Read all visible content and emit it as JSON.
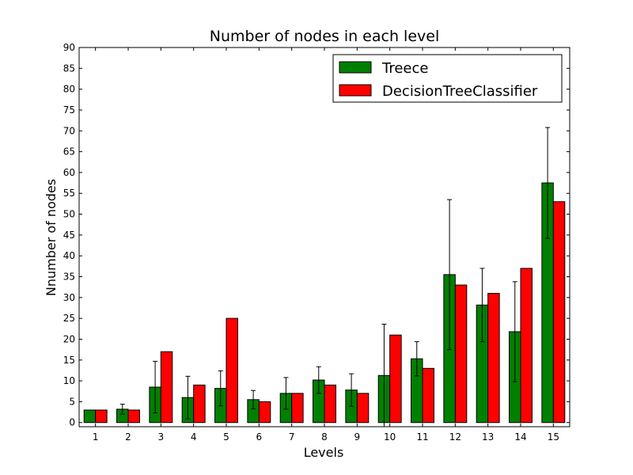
{
  "chart_data": {
    "type": "bar",
    "title": "Number of nodes in each level",
    "xlabel": "Levels",
    "ylabel": "Nnumber of nodes",
    "categories": [
      "1",
      "2",
      "3",
      "4",
      "5",
      "6",
      "7",
      "8",
      "9",
      "10",
      "11",
      "12",
      "13",
      "14",
      "15"
    ],
    "ylim": [
      -1,
      90
    ],
    "yticks": [
      0,
      5,
      10,
      15,
      20,
      25,
      30,
      35,
      40,
      45,
      50,
      55,
      60,
      65,
      70,
      75,
      80,
      85,
      90
    ],
    "grid": false,
    "legend_position": "top-right",
    "series": [
      {
        "name": "Treece",
        "color": "#008000",
        "values": [
          3,
          3.2,
          8.5,
          6,
          8.2,
          5.5,
          7,
          10.2,
          7.8,
          11.3,
          15.3,
          35.5,
          28.2,
          21.8,
          57.5
        ],
        "errors": [
          0,
          1.2,
          6.2,
          5.1,
          4.2,
          2.2,
          3.8,
          3.2,
          3.9,
          12.3,
          4.1,
          18,
          8.8,
          12,
          13.3
        ]
      },
      {
        "name": "DecisionTreeClassifier",
        "color": "#ff0000",
        "values": [
          3,
          3,
          17,
          9,
          25,
          5,
          7,
          9,
          7,
          21,
          13,
          33,
          31,
          37,
          53
        ]
      }
    ]
  }
}
